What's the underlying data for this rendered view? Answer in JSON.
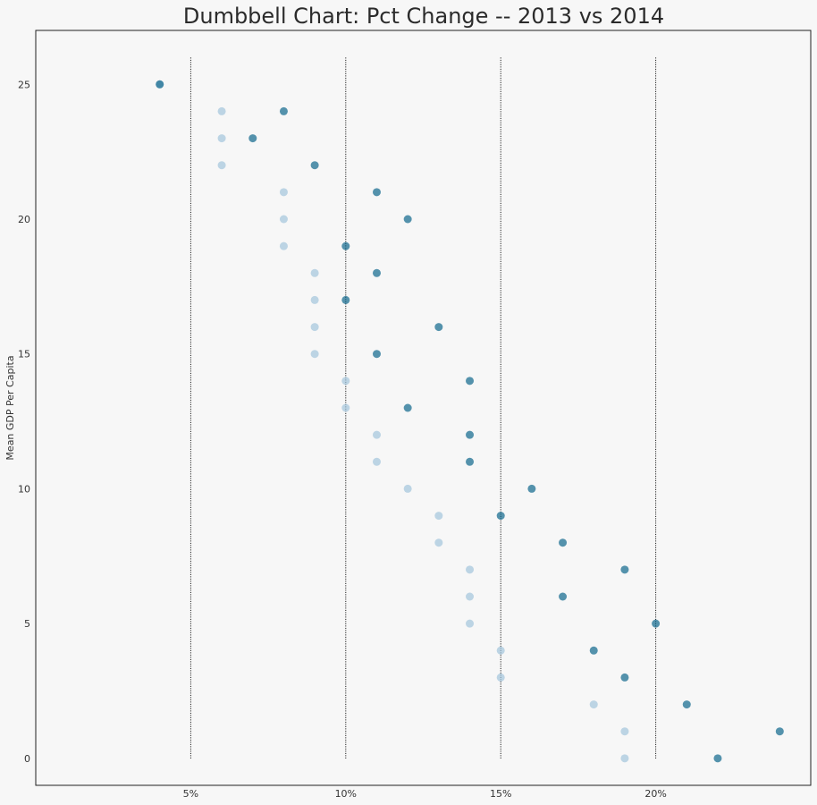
{
  "chart_data": {
    "type": "scatter",
    "subtype": "dumbbell",
    "title": "Dumbbell Chart: Pct Change -- 2013 vs 2014",
    "xlabel": "",
    "ylabel": "Mean GDP Per Capita",
    "x_ticks": [
      {
        "value": 0.05,
        "label": "5%"
      },
      {
        "value": 0.1,
        "label": "10%"
      },
      {
        "value": 0.15,
        "label": "15%"
      },
      {
        "value": 0.2,
        "label": "20%"
      }
    ],
    "y_ticks": [
      {
        "value": 0,
        "label": "0"
      },
      {
        "value": 5,
        "label": "5"
      },
      {
        "value": 10,
        "label": "10"
      },
      {
        "value": 15,
        "label": "15"
      },
      {
        "value": 20,
        "label": "20"
      },
      {
        "value": 25,
        "label": "25"
      }
    ],
    "xlim": [
      0.0,
      0.25
    ],
    "ylim": [
      -1,
      27
    ],
    "vlines": {
      "x": [
        0.05,
        0.1,
        0.15,
        0.2
      ],
      "ymin": 0,
      "ymax": 26,
      "style": "dotted",
      "color": "#000000"
    },
    "legend": "none",
    "grid": false,
    "series": [
      {
        "color": "#a3c4dc",
        "y": [
          0,
          1,
          2,
          3,
          4,
          5,
          6,
          7,
          8,
          9,
          10,
          11,
          12,
          13,
          14,
          15,
          16,
          17,
          18,
          19,
          20,
          21,
          22,
          23,
          24,
          25
        ],
        "values": [
          0.19,
          0.19,
          0.18,
          0.15,
          0.15,
          0.14,
          0.14,
          0.14,
          0.13,
          0.13,
          0.12,
          0.11,
          0.11,
          0.1,
          0.1,
          0.09,
          0.09,
          0.09,
          0.09,
          0.08,
          0.08,
          0.08,
          0.06,
          0.06,
          0.06,
          0.04
        ]
      },
      {
        "color": "#0e668b",
        "y": [
          0,
          1,
          2,
          3,
          4,
          5,
          6,
          7,
          8,
          9,
          10,
          11,
          12,
          13,
          14,
          15,
          16,
          17,
          18,
          19,
          20,
          21,
          22,
          23,
          24,
          25
        ],
        "values": [
          0.22,
          0.24,
          0.21,
          0.19,
          0.18,
          0.2,
          0.17,
          0.19,
          0.17,
          0.15,
          0.16,
          0.14,
          0.14,
          0.12,
          0.14,
          0.11,
          0.13,
          0.1,
          0.11,
          0.1,
          0.12,
          0.11,
          0.09,
          0.07,
          0.08,
          0.04
        ]
      }
    ]
  }
}
